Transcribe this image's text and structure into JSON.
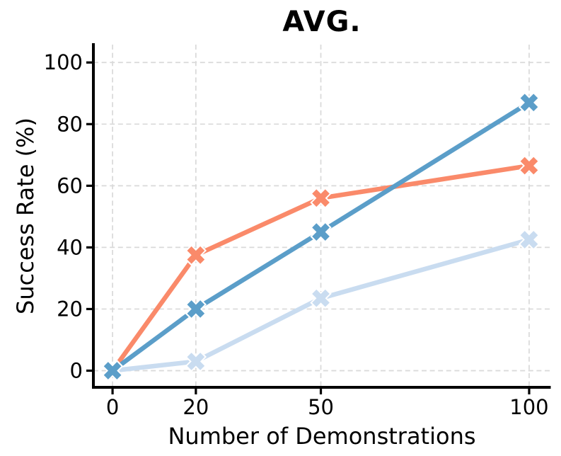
{
  "title": "AVG.",
  "chart_data": {
    "type": "line",
    "title": "AVG.",
    "xlabel": "Number of Demonstrations",
    "ylabel": "Success Rate (%)",
    "x": [
      0,
      20,
      50,
      100
    ],
    "xticks": [
      "0",
      "20",
      "50",
      "100"
    ],
    "xtick_values": [
      0,
      20,
      50,
      100
    ],
    "yticks": [
      "0",
      "20",
      "40",
      "60",
      "80",
      "100"
    ],
    "ytick_values": [
      0,
      20,
      40,
      60,
      80,
      100
    ],
    "xlim": [
      -4.6,
      105.1
    ],
    "ylim": [
      -5.4,
      105.8
    ],
    "grid": true,
    "grid_style": "dashed",
    "legend": "none",
    "marker": "X",
    "marker_edge_color": "#ffffff",
    "series": [
      {
        "name": "light-blue",
        "color": "#c9dcf0",
        "values": [
          0,
          3,
          23.5,
          42.5
        ]
      },
      {
        "name": "orange",
        "color": "#fa8a6a",
        "values": [
          0,
          37.5,
          56,
          66.5
        ]
      },
      {
        "name": "blue",
        "color": "#5b9ec9",
        "values": [
          0,
          20,
          45,
          87
        ]
      }
    ],
    "colors": {
      "grid": "#d9d9d9",
      "axis": "#000000",
      "background": "#ffffff"
    }
  }
}
